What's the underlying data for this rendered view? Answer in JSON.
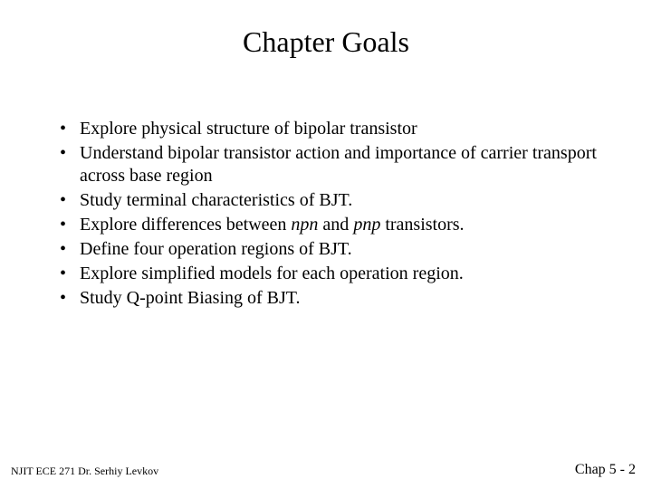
{
  "title": "Chapter Goals",
  "bullets": [
    "Explore physical structure of bipolar transistor",
    "Understand bipolar transistor action and importance of carrier transport across base region",
    "Study terminal characteristics of BJT.",
    "Explore differences between npn and pnp transistors.",
    "Define four operation regions of BJT.",
    "Explore simplified models for each operation region.",
    "Study Q-point Biasing of BJT."
  ],
  "footer_left": "NJIT  ECE 271  Dr. Serhiy Levkov",
  "footer_right": "Chap 5 - 2",
  "italic_terms": [
    "npn",
    "pnp"
  ],
  "styling": {
    "background_color": "#ffffff",
    "text_color": "#000000",
    "title_fontsize": 32,
    "body_fontsize": 20,
    "footer_left_fontsize": 12,
    "footer_right_fontsize": 16,
    "font_family": "Times New Roman"
  }
}
